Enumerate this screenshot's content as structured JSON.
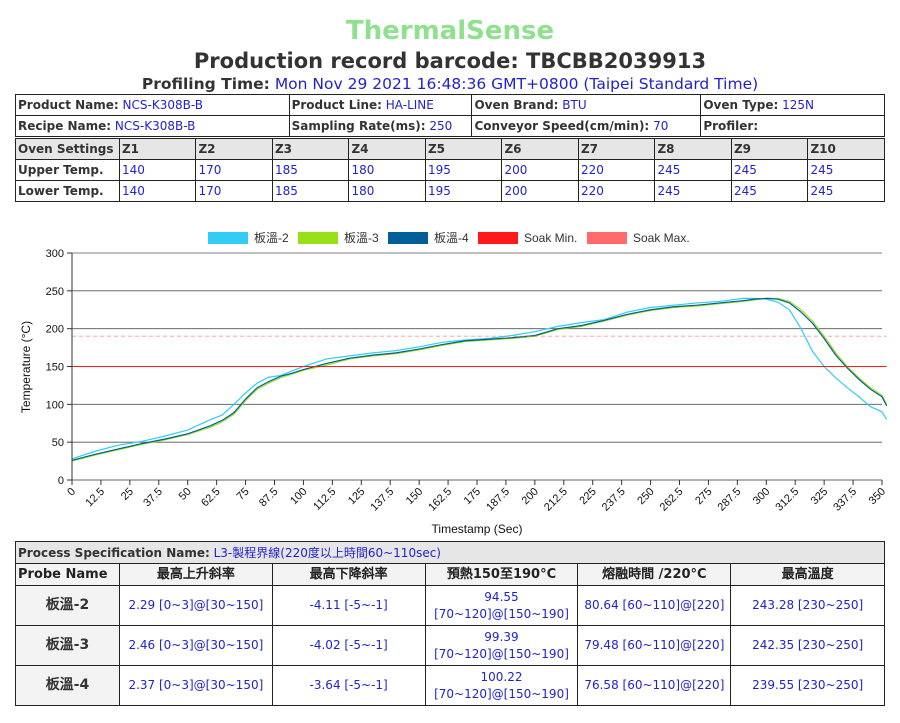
{
  "brand": "ThermalSense",
  "title": "Production record barcode: TBCBB2039913",
  "profiling": {
    "label": "Profiling Time:",
    "value": "Mon Nov 29 2021 16:48:36 GMT+0800 (Taipei Standard Time)"
  },
  "info": {
    "product_name_label": "Product Name:",
    "product_name": "NCS-K308B-B",
    "product_line_label": "Product Line:",
    "product_line": "HA-LINE",
    "oven_brand_label": "Oven Brand:",
    "oven_brand": "BTU",
    "oven_type_label": "Oven Type:",
    "oven_type": "125N",
    "recipe_name_label": "Recipe Name:",
    "recipe_name": "NCS-K308B-B",
    "sampling_rate_label": "Sampling Rate(ms):",
    "sampling_rate": "250",
    "conveyor_speed_label": "Conveyor Speed(cm/min):",
    "conveyor_speed": "70",
    "profiler_label": "Profiler:",
    "profiler": ""
  },
  "oven": {
    "settings_label": "Oven Settings",
    "zones": [
      "Z1",
      "Z2",
      "Z3",
      "Z4",
      "Z5",
      "Z6",
      "Z7",
      "Z8",
      "Z9",
      "Z10"
    ],
    "upper_label": "Upper Temp.",
    "upper": [
      "140",
      "170",
      "185",
      "180",
      "195",
      "200",
      "220",
      "245",
      "245",
      "245"
    ],
    "lower_label": "Lower Temp.",
    "lower": [
      "140",
      "170",
      "185",
      "180",
      "195",
      "200",
      "220",
      "245",
      "245",
      "245"
    ]
  },
  "chart_data": {
    "type": "line",
    "xlabel": "Timestamp (Sec)",
    "ylabel": "Temperature (°C)",
    "xlim": [
      0,
      350
    ],
    "ylim": [
      0,
      300
    ],
    "xticks": [
      "0",
      "12.5",
      "25",
      "37.5",
      "50",
      "62.5",
      "75",
      "87.5",
      "100",
      "112.5",
      "125",
      "137.5",
      "150",
      "162.5",
      "175",
      "187.5",
      "200",
      "212.5",
      "225",
      "237.5",
      "250",
      "262.5",
      "275",
      "287.5",
      "300",
      "312.5",
      "325",
      "337.5",
      "350"
    ],
    "yticks": [
      "0",
      "50",
      "100",
      "150",
      "200",
      "250",
      "300"
    ],
    "legend_position": "top",
    "grid": "horizontal",
    "series": [
      {
        "name": "板溫-2",
        "color": "#33ccf5",
        "x": [
          0,
          10,
          20,
          30,
          40,
          50,
          60,
          65,
          70,
          75,
          80,
          85,
          90,
          95,
          100,
          110,
          120,
          130,
          140,
          150,
          160,
          170,
          180,
          190,
          200,
          210,
          220,
          230,
          240,
          250,
          260,
          270,
          280,
          290,
          295,
          300,
          305,
          310,
          315,
          320,
          325,
          330,
          335,
          340,
          345,
          350,
          352
        ],
        "y": [
          28,
          38,
          46,
          51,
          58,
          66,
          80,
          86,
          100,
          115,
          128,
          136,
          138,
          144,
          150,
          160,
          164,
          168,
          171,
          176,
          182,
          185,
          187,
          191,
          196,
          203,
          208,
          212,
          222,
          228,
          231,
          234,
          236,
          240,
          240,
          239,
          235,
          225,
          200,
          170,
          150,
          135,
          122,
          110,
          97,
          90,
          80
        ]
      },
      {
        "name": "板溫-3",
        "color": "#99e019",
        "x": [
          0,
          10,
          20,
          30,
          40,
          50,
          60,
          65,
          70,
          75,
          80,
          85,
          90,
          95,
          100,
          110,
          120,
          130,
          140,
          150,
          160,
          170,
          180,
          190,
          200,
          210,
          220,
          230,
          240,
          250,
          260,
          270,
          280,
          290,
          295,
          300,
          305,
          310,
          315,
          320,
          325,
          330,
          335,
          340,
          345,
          350,
          352
        ],
        "y": [
          25,
          33,
          40,
          47,
          53,
          60,
          70,
          77,
          87,
          105,
          120,
          128,
          135,
          140,
          145,
          152,
          160,
          164,
          167,
          172,
          178,
          183,
          185,
          187,
          190,
          199,
          203,
          210,
          218,
          224,
          228,
          230,
          233,
          236,
          238,
          240,
          240,
          236,
          225,
          210,
          190,
          168,
          150,
          135,
          122,
          112,
          100
        ]
      },
      {
        "name": "板溫-4",
        "color": "#005f99",
        "x": [
          0,
          10,
          20,
          30,
          40,
          50,
          60,
          65,
          70,
          75,
          80,
          85,
          90,
          95,
          100,
          110,
          120,
          130,
          140,
          150,
          160,
          170,
          180,
          190,
          200,
          210,
          220,
          230,
          240,
          250,
          260,
          270,
          280,
          290,
          295,
          300,
          305,
          310,
          315,
          320,
          325,
          330,
          335,
          340,
          345,
          350,
          352
        ],
        "y": [
          26,
          34,
          41,
          48,
          54,
          61,
          72,
          79,
          89,
          107,
          122,
          130,
          137,
          141,
          146,
          154,
          161,
          165,
          168,
          173,
          179,
          184,
          186,
          188,
          191,
          200,
          204,
          211,
          219,
          225,
          229,
          231,
          234,
          237,
          239,
          240,
          239,
          234,
          222,
          207,
          187,
          165,
          148,
          133,
          120,
          110,
          98
        ]
      },
      {
        "name": "Soak Min.",
        "color": "#ff1a1a",
        "x": [
          0,
          352
        ],
        "y": [
          150,
          150
        ]
      },
      {
        "name": "Soak Max.",
        "color": "#ff6b6b",
        "dashed": true,
        "x": [
          0,
          352
        ],
        "y": [
          190,
          190
        ]
      }
    ]
  },
  "spec": {
    "label": "Process Specification Name:",
    "value": "L3-製程界線(220度以上時間60~110sec)",
    "columns": [
      "Probe Name",
      "最高上升斜率",
      "最高下降斜率",
      "預熱150至190°C",
      "熔融時間 /220°C",
      "最高溫度"
    ],
    "rows": [
      {
        "probe": "板溫-2",
        "rise": "2.29 [0~3]@[30~150]",
        "fall": "-4.11 [-5~-1]",
        "preheat_val": "94.55",
        "preheat_spec": "[70~120]@[150~190]",
        "melt": "80.64 [60~110]@[220]",
        "peak": "243.28 [230~250]"
      },
      {
        "probe": "板溫-3",
        "rise": "2.46 [0~3]@[30~150]",
        "fall": "-4.02 [-5~-1]",
        "preheat_val": "99.39",
        "preheat_spec": "[70~120]@[150~190]",
        "melt": "79.48 [60~110]@[220]",
        "peak": "242.35 [230~250]"
      },
      {
        "probe": "板溫-4",
        "rise": "2.37 [0~3]@[30~150]",
        "fall": "-3.64 [-5~-1]",
        "preheat_val": "100.22",
        "preheat_spec": "[70~120]@[150~190]",
        "melt": "76.58 [60~110]@[220]",
        "peak": "239.55 [230~250]"
      }
    ]
  }
}
